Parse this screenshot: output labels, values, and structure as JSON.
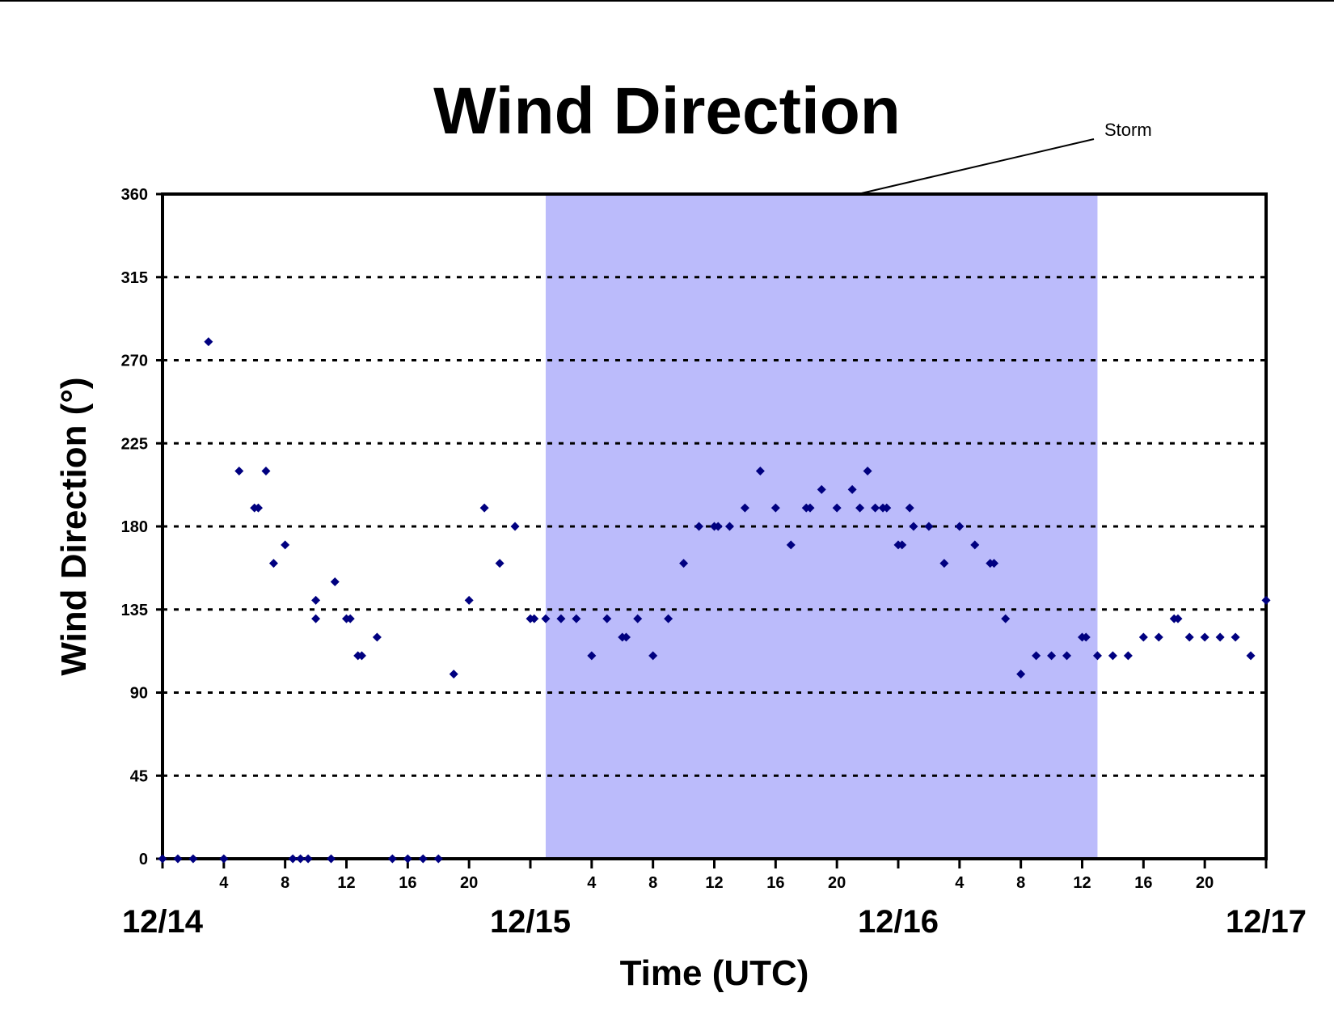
{
  "chart_data": {
    "type": "scatter",
    "title": "Wind Direction",
    "xlabel": "Time (UTC)",
    "ylabel": "Wind Direction (°)",
    "ylim": [
      0,
      360
    ],
    "yticks": [
      0,
      45,
      90,
      135,
      180,
      225,
      270,
      315,
      360
    ],
    "xlim": [
      "12/14 00:00",
      "12/17 00:00"
    ],
    "x_hour_ticks": [
      "4",
      "8",
      "12",
      "16",
      "20",
      "",
      "4",
      "8",
      "12",
      "16",
      "20",
      "",
      "4",
      "8",
      "12",
      "16",
      "20"
    ],
    "date_labels": [
      "12/14",
      "12/15",
      "12/16",
      "12/17"
    ],
    "grid": "horizontal dotted",
    "marker_color": "#000080",
    "shading_color": "#bbbbfb",
    "annotation": {
      "label": "Storm",
      "start": "12/15 01:00",
      "end": "12/16 13:00"
    },
    "series": [
      {
        "x": [
          "12/14 00:00",
          "12/14 01:00",
          "12/14 02:00",
          "12/14 03:00",
          "12/14 04:00",
          "12/14 05:00",
          "12/14 06:00",
          "12/14 06:15",
          "12/14 06:45",
          "12/14 07:15",
          "12/14 08:00",
          "12/14 08:30",
          "12/14 09:00",
          "12/14 09:30",
          "12/14 10:00",
          "12/14 10:00",
          "12/14 11:00",
          "12/14 11:15",
          "12/14 12:00",
          "12/14 12:15",
          "12/14 12:45",
          "12/14 13:00",
          "12/14 14:00",
          "12/14 15:00",
          "12/14 16:00",
          "12/14 17:00",
          "12/14 18:00",
          "12/14 19:00",
          "12/14 20:00",
          "12/14 21:00",
          "12/14 22:00",
          "12/14 23:00",
          "12/15 00:00",
          "12/15 00:15",
          "12/15 01:00",
          "12/15 02:00",
          "12/15 03:00",
          "12/15 04:00",
          "12/15 05:00",
          "12/15 06:00",
          "12/15 06:15",
          "12/15 07:00",
          "12/15 08:00",
          "12/15 09:00",
          "12/15 10:00",
          "12/15 11:00",
          "12/15 12:00",
          "12/15 12:15",
          "12/15 13:00",
          "12/15 14:00",
          "12/15 15:00",
          "12/15 16:00",
          "12/15 17:00",
          "12/15 18:00",
          "12/15 18:15",
          "12/15 19:00",
          "12/15 20:00",
          "12/15 21:00",
          "12/15 21:30",
          "12/15 22:00",
          "12/15 22:30",
          "12/15 23:00",
          "12/15 23:15",
          "12/16 00:00",
          "12/16 00:15",
          "12/16 00:45",
          "12/16 01:00",
          "12/16 02:00",
          "12/16 03:00",
          "12/16 04:00",
          "12/16 05:00",
          "12/16 06:00",
          "12/16 06:15",
          "12/16 07:00",
          "12/16 08:00",
          "12/16 09:00",
          "12/16 10:00",
          "12/16 11:00",
          "12/16 12:00",
          "12/16 12:15",
          "12/16 13:00",
          "12/16 14:00",
          "12/16 15:00",
          "12/16 16:00",
          "12/16 17:00",
          "12/16 18:00",
          "12/16 18:15",
          "12/16 19:00",
          "12/16 20:00",
          "12/16 21:00",
          "12/16 22:00",
          "12/16 23:00",
          "12/17 00:00"
        ],
        "y": [
          0,
          0,
          0,
          280,
          0,
          210,
          190,
          190,
          210,
          160,
          170,
          0,
          0,
          0,
          140,
          130,
          0,
          150,
          130,
          130,
          110,
          110,
          120,
          0,
          0,
          0,
          0,
          100,
          140,
          190,
          160,
          180,
          130,
          130,
          130,
          130,
          130,
          110,
          130,
          120,
          120,
          130,
          110,
          130,
          160,
          180,
          180,
          180,
          180,
          190,
          210,
          190,
          170,
          190,
          190,
          200,
          190,
          200,
          190,
          210,
          190,
          190,
          190,
          170,
          170,
          190,
          180,
          180,
          160,
          180,
          170,
          160,
          160,
          130,
          100,
          110,
          110,
          110,
          120,
          120,
          110,
          110,
          110,
          120,
          120,
          130,
          130,
          120,
          120,
          120,
          120,
          110,
          140
        ]
      }
    ]
  }
}
